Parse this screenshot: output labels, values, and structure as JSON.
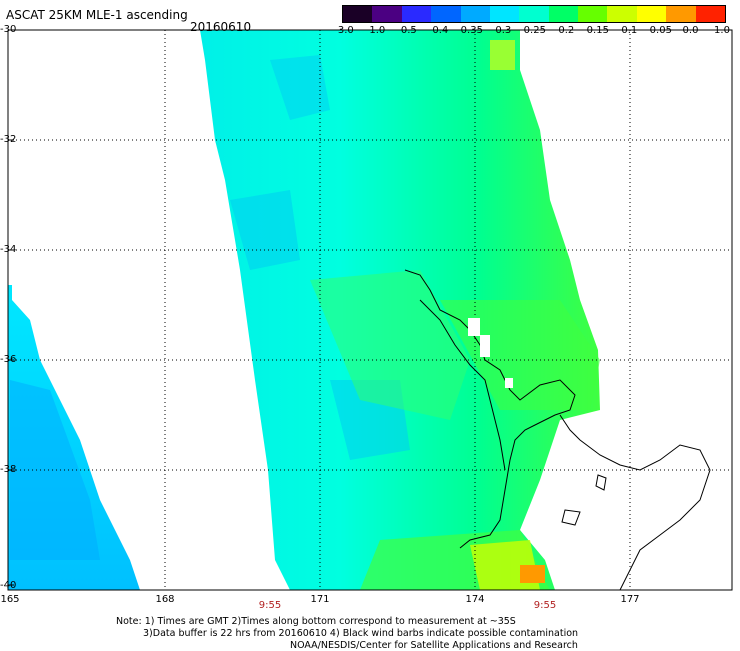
{
  "title": "ASCAT 25KM MLE-1 ascending",
  "date": "20160610",
  "colorbar": {
    "labels": [
      "-3.0",
      "-1.0",
      "-0.5",
      "-0.4",
      "-0.35",
      "-0.3",
      "-0.25",
      "-0.2",
      "-0.15",
      "-0.1",
      "-0.05",
      "0.0",
      "1.0"
    ],
    "colors": [
      "#1a0026",
      "#4b0082",
      "#2a2aff",
      "#0066ff",
      "#00aaff",
      "#00e5ff",
      "#00ffd0",
      "#00ff66",
      "#66ff00",
      "#ccff00",
      "#ffff00",
      "#ff9900",
      "#ff2200"
    ]
  },
  "axes": {
    "lat_labels": [
      "-30",
      "-32",
      "-34",
      "-36",
      "-38",
      "-40"
    ],
    "lon_labels": [
      "165",
      "168",
      "171",
      "174",
      "177"
    ]
  },
  "times": [
    "9:55",
    "9:55"
  ],
  "notes": [
    "Note: 1) Times are GMT 2)Times along bottom correspond to measurement at ~35S",
    "3)Data buffer is 22 hrs from 20160610 4) Black wind barbs indicate possible contamination",
    "NOAA/NESDIS/Center for Satellite Applications and Research"
  ]
}
